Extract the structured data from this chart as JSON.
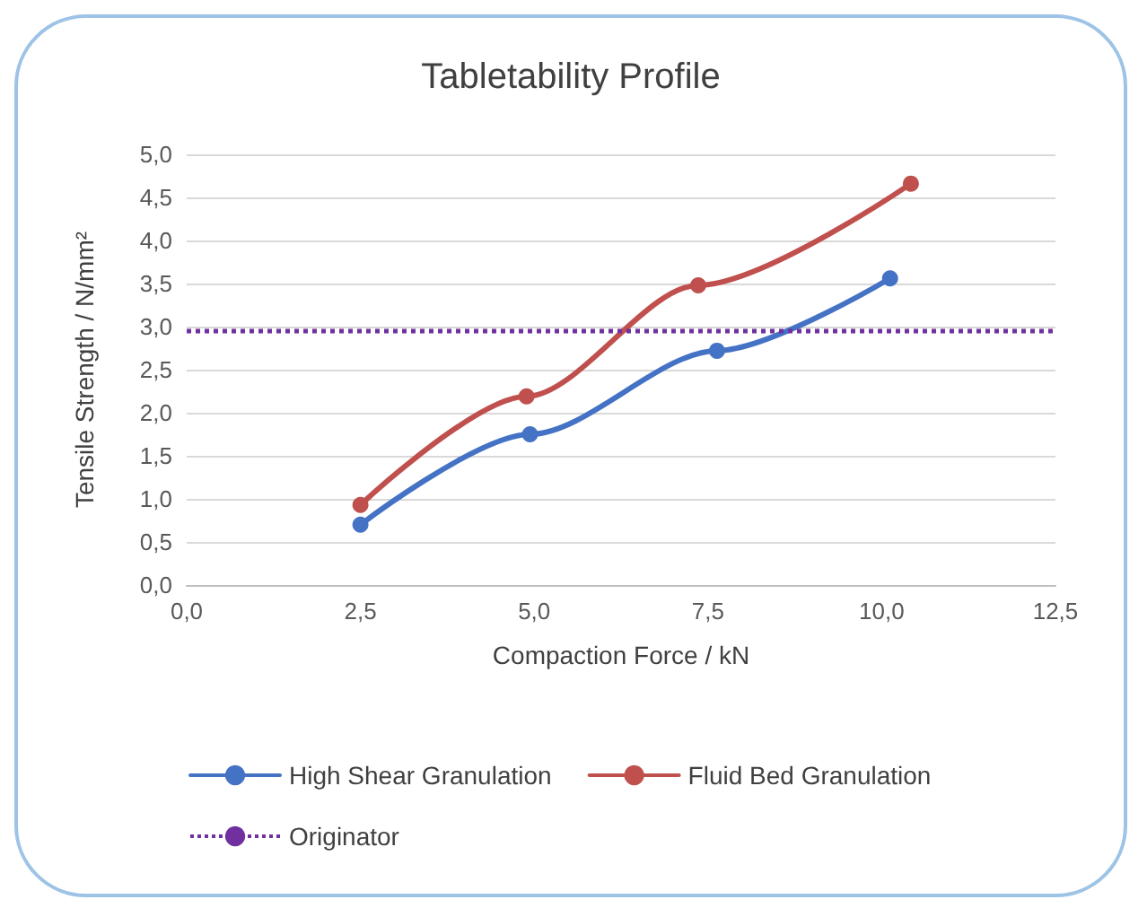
{
  "chart_data": {
    "type": "line",
    "title": "Tabletability Profile",
    "xlabel": "Compaction Force / kN",
    "ylabel": "Tensile Strength / N/mm²",
    "series": [
      {
        "name": "High Shear Granulation",
        "color": "#4472c4",
        "x": [
          2.5,
          4.94,
          7.63,
          10.12
        ],
        "values": [
          0.7,
          1.75,
          2.72,
          3.56
        ]
      },
      {
        "name": "Fluid Bed Granulation",
        "color": "#c0504d",
        "x": [
          2.5,
          4.89,
          7.36,
          10.42
        ],
        "values": [
          0.93,
          2.19,
          3.48,
          4.66
        ]
      }
    ],
    "ref_lines": [
      {
        "axis": "y",
        "value": 2.95,
        "label": "Originator",
        "color": "#7030a0",
        "line_style": "dotted"
      }
    ],
    "xlim": [
      0,
      12.5
    ],
    "xticks": [
      {
        "value": 0,
        "label": "0,0"
      },
      {
        "value": 2.5,
        "label": "2,5"
      },
      {
        "value": 5,
        "label": "5,0"
      },
      {
        "value": 7.5,
        "label": "7,5"
      },
      {
        "value": 10,
        "label": "10,0"
      },
      {
        "value": 12.5,
        "label": "12,5"
      }
    ],
    "ylim": [
      0,
      5
    ],
    "yticks": [
      {
        "value": 0,
        "label": "0,0"
      },
      {
        "value": 0.5,
        "label": "0,5"
      },
      {
        "value": 1,
        "label": "1,0"
      },
      {
        "value": 1.5,
        "label": "1,5"
      },
      {
        "value": 2,
        "label": "2,0"
      },
      {
        "value": 2.5,
        "label": "2,5"
      },
      {
        "value": 3,
        "label": "3,0"
      },
      {
        "value": 3.5,
        "label": "3,5"
      },
      {
        "value": 4,
        "label": "4,0"
      },
      {
        "value": 4.5,
        "label": "4,5"
      },
      {
        "value": 5,
        "label": "5,0"
      }
    ],
    "grid": "y",
    "legend": "bottom",
    "marker": "circle",
    "line_style": "solid"
  }
}
